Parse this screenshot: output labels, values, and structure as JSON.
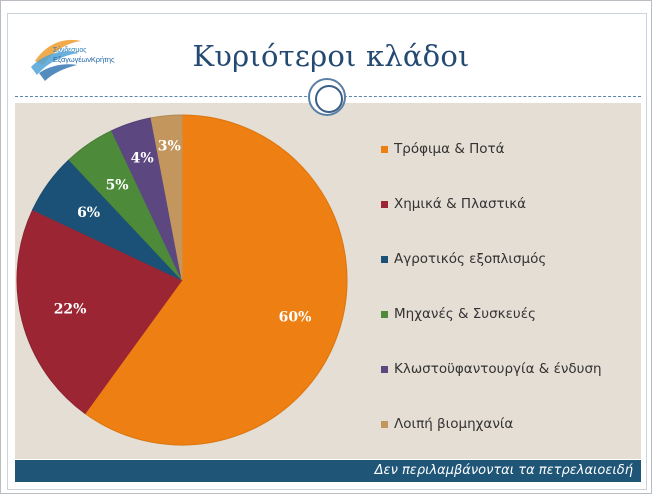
{
  "slide": {
    "title": "Κυριότεροι κλάδοι",
    "logo": {
      "line1": "Σύνδεσμος",
      "line2": "ΕξαγωγέωνΚρήτης"
    },
    "footer_note": "Δεν περιλαμβάνονται τα πετρελαιοειδή"
  },
  "colors": {
    "title": "#244a72",
    "panel_background": "#e4ded4",
    "footer_bar": "#1f5577"
  },
  "chart_data": {
    "type": "pie",
    "title": "",
    "slices": [
      {
        "label": "Τρόφιμα & Ποτά",
        "value": 60,
        "display": "60%",
        "color": "#ee7f12"
      },
      {
        "label": "Χημικά & Πλαστικά",
        "value": 22,
        "display": "22%",
        "color": "#9b2533"
      },
      {
        "label": "Αγροτικός εξοπλισμός",
        "value": 6,
        "display": "6%",
        "color": "#1b5176"
      },
      {
        "label": "Μηχανές & Συσκευές",
        "value": 5,
        "display": "5%",
        "color": "#4d8a3a"
      },
      {
        "label": "Κλωστοϋφαντουργία & ένδυση",
        "value": 4,
        "display": "4%",
        "color": "#5d4780"
      },
      {
        "label": "Λοιπή βιομηχανία",
        "value": 3,
        "display": "3%",
        "color": "#c3965d"
      }
    ],
    "start_angle_deg": 0,
    "direction": "clockwise",
    "legend_position": "right",
    "data_labels": "inside"
  }
}
